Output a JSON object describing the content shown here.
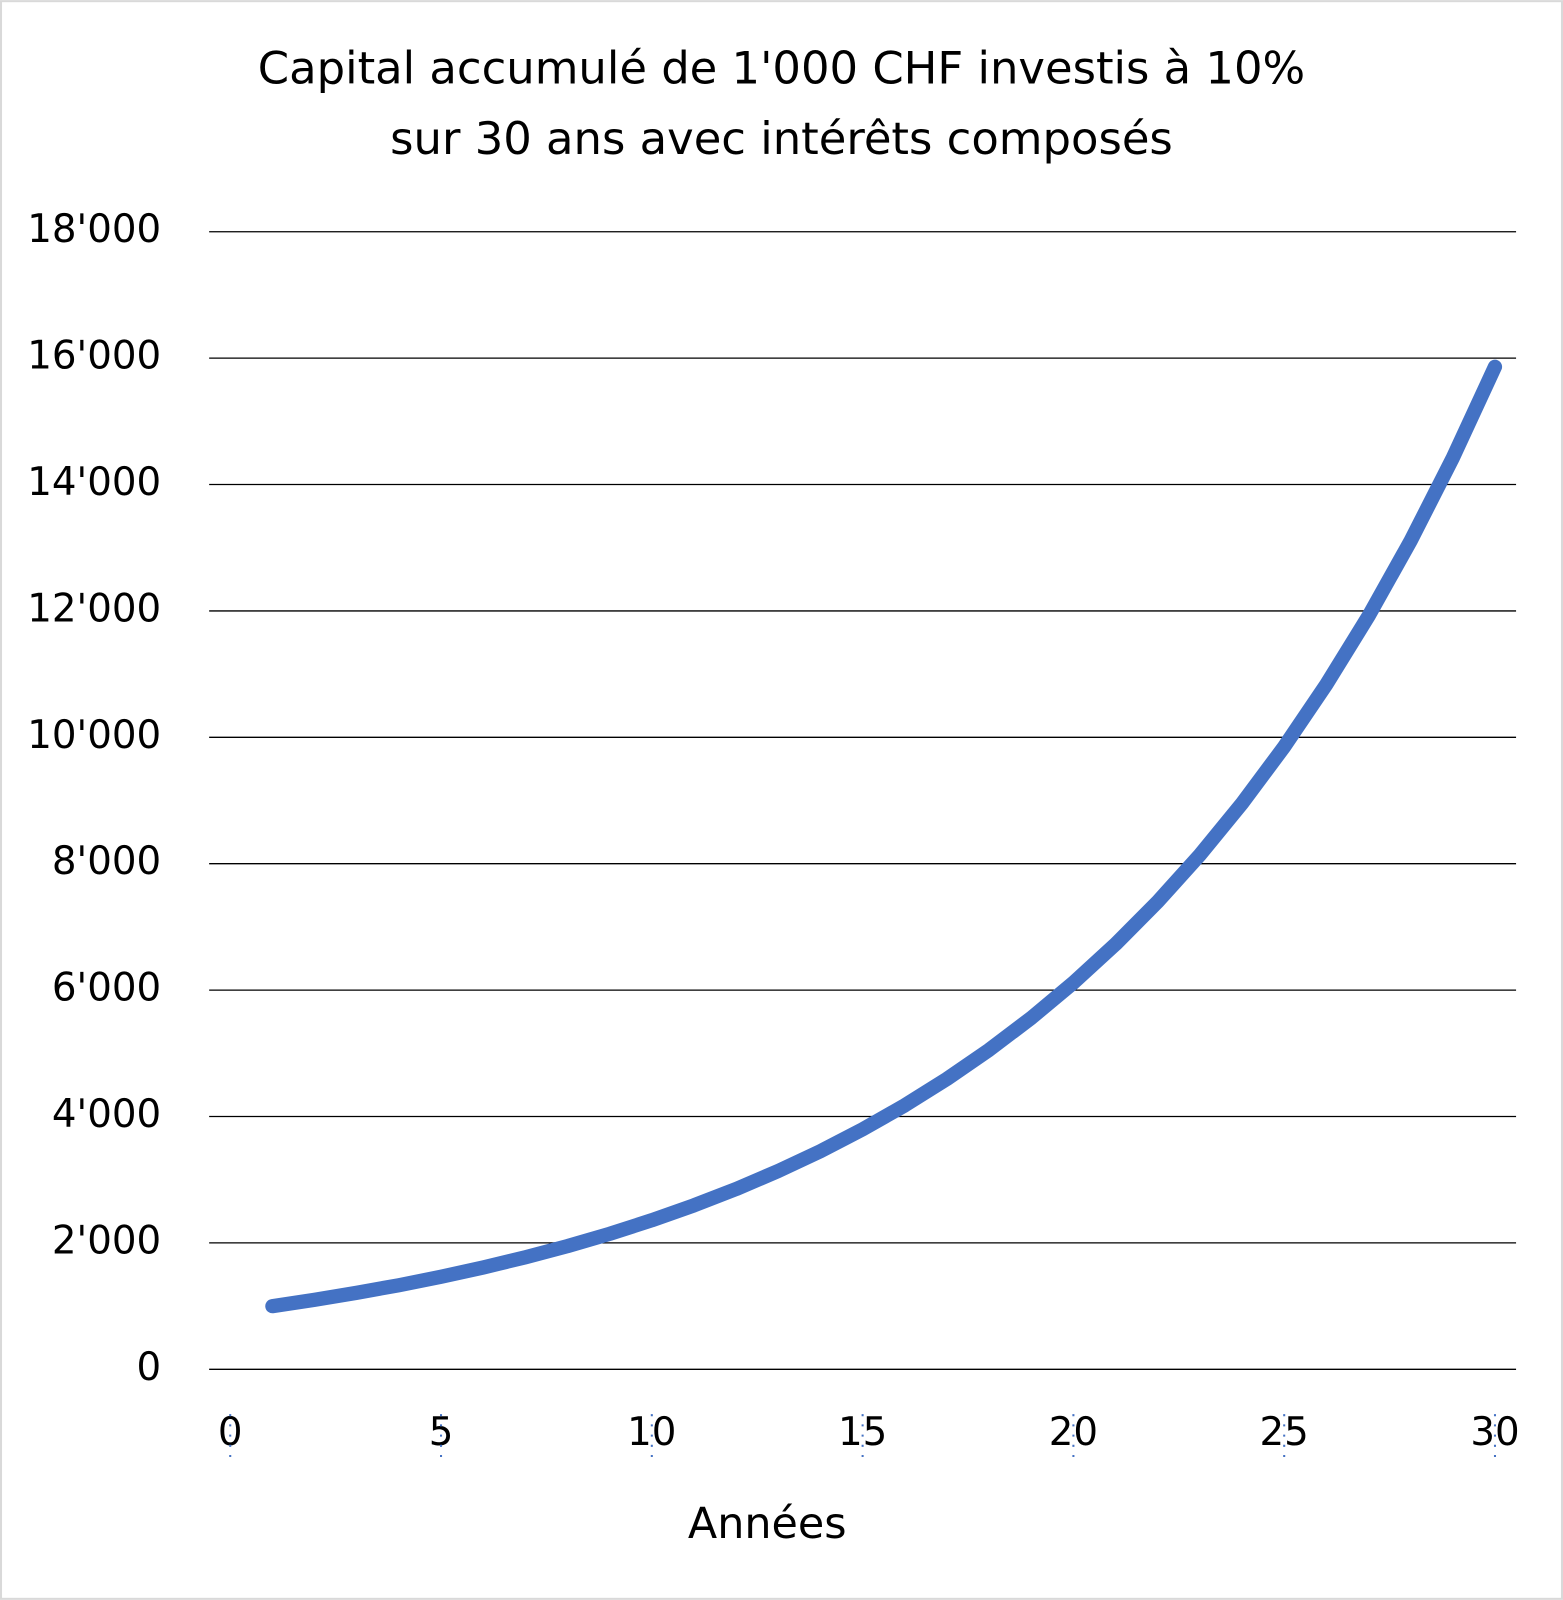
{
  "chart_data": {
    "type": "line",
    "title": [
      "Capital accumulé de 1'000 CHF investis à 10%",
      "sur 30 ans avec intérêts composés"
    ],
    "x_label": "Années",
    "x": [
      1,
      2,
      3,
      4,
      5,
      6,
      7,
      8,
      9,
      10,
      11,
      12,
      13,
      14,
      15,
      16,
      17,
      18,
      19,
      20,
      21,
      22,
      23,
      24,
      25,
      26,
      27,
      28,
      29,
      30
    ],
    "series": [
      {
        "color": "#4472c4",
        "values": [
          1000,
          1100,
          1210,
          1331,
          1464,
          1611,
          1772,
          1949,
          2144,
          2358,
          2594,
          2853,
          3138,
          3452,
          3797,
          4177,
          4595,
          5054,
          5560,
          6116,
          6727,
          7400,
          8140,
          8954,
          9850,
          10835,
          11918,
          13110,
          14421,
          15863
        ]
      }
    ],
    "xlim": [
      -0.5,
      30.5
    ],
    "xticks": [
      0,
      5,
      10,
      15,
      20,
      25,
      30
    ],
    "ylim": [
      0,
      18000
    ],
    "yticks": [
      0,
      {
        "value": 2000,
        "label": "2'000"
      },
      {
        "value": 4000,
        "label": "4'000"
      },
      {
        "value": 6000,
        "label": "6'000"
      },
      {
        "value": 8000,
        "label": "8'000"
      },
      {
        "value": 10000,
        "label": "10'000"
      },
      {
        "value": 12000,
        "label": "12'000"
      },
      {
        "value": 14000,
        "label": "14'000"
      },
      {
        "value": 16000,
        "label": "16'000"
      },
      {
        "value": 18000,
        "label": "18'000"
      }
    ],
    "grid": true
  }
}
